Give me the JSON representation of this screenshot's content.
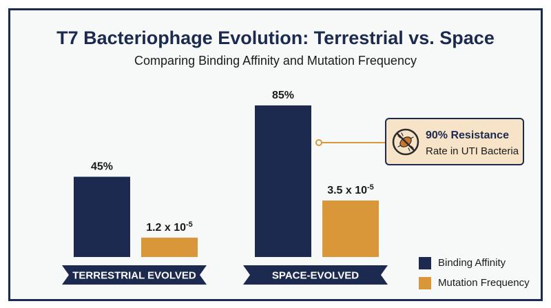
{
  "title": "T7 Bacteriophage Evolution: Terrestrial vs. Space",
  "subtitle": "Comparing Binding Affinity and Mutation Frequency",
  "colors": {
    "binding": "#1b2a4e",
    "mutation": "#d9973a",
    "background": "#f7f8f8",
    "callout_bg": "#f6e3c8"
  },
  "callout": {
    "icon": "crossed-out-bacteria-icon",
    "title": "90% Resistance",
    "text": "Rate in UTI Bacteria"
  },
  "chart_data": {
    "type": "bar",
    "title": "T7 Bacteriophage Evolution: Terrestrial vs. Space",
    "subtitle": "Comparing Binding Affinity and Mutation Frequency",
    "categories": [
      "TERRESTRIAL EVOLVED",
      "SPACE-EVOLVED"
    ],
    "series": [
      {
        "name": "Binding Affinity",
        "values": [
          45,
          85
        ],
        "unit": "%",
        "labels": [
          "45%",
          "85%"
        ]
      },
      {
        "name": "Mutation Frequency",
        "values": [
          1.2e-05,
          3.5e-05
        ],
        "labels": [
          "1.2 x 10",
          "3.5 x 10"
        ],
        "label_exponent": "-5"
      }
    ],
    "legend_position": "bottom-right",
    "grid": false,
    "annotation": "90% Resistance Rate in UTI Bacteria"
  }
}
